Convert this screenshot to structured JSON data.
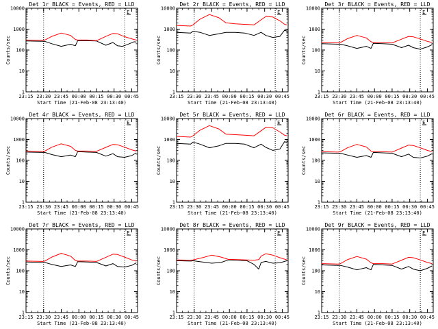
{
  "figure": {
    "colors": {
      "background": "#ffffff",
      "events": "#000000",
      "lld": "#ff0000",
      "axis": "#000000"
    },
    "xlabel": "Start Time (21-Feb-08 23:13:40)",
    "ylabel": "Counts/sec",
    "x_tick_labels": [
      "23:15",
      "23:30",
      "23:45",
      "00:00",
      "00:15",
      "00:30",
      "00:45"
    ],
    "y_tick_labels": [
      "1",
      "10",
      "100",
      "1000",
      "10000"
    ],
    "marker_label": "E"
  },
  "chart_data": [
    {
      "type": "line",
      "title": "Det 1r BLACK = Events, RED = LLD",
      "x_unit": "minutes after 23:15",
      "ylim": [
        1,
        10000
      ],
      "xlim": [
        0,
        95
      ],
      "y_scale": "log",
      "vlines": [
        15,
        84
      ],
      "series": [
        {
          "color": "#000000",
          "x": [
            0,
            14,
            16,
            22,
            30,
            38,
            42,
            44,
            52,
            60,
            68,
            74,
            78,
            82,
            86,
            92,
            94
          ],
          "y": [
            270,
            260,
            260,
            200,
            150,
            190,
            160,
            280,
            280,
            270,
            170,
            230,
            160,
            150,
            180,
            250,
            240
          ]
        },
        {
          "color": "#ff0000",
          "x": [
            0,
            14,
            16,
            22,
            30,
            38,
            42,
            44,
            52,
            60,
            68,
            74,
            78,
            82,
            86,
            92,
            94
          ],
          "y": [
            300,
            290,
            300,
            450,
            650,
            500,
            320,
            300,
            300,
            280,
            450,
            620,
            600,
            480,
            400,
            320,
            300
          ]
        }
      ]
    },
    {
      "type": "line",
      "title": "Det 2r BLACK = Events, RED = LLD",
      "x_unit": "minutes after 23:15",
      "ylim": [
        1,
        10000
      ],
      "xlim": [
        0,
        95
      ],
      "y_scale": "log",
      "vlines": [
        15,
        84
      ],
      "series": [
        {
          "color": "#000000",
          "x": [
            0,
            12,
            14,
            20,
            28,
            36,
            42,
            50,
            58,
            66,
            72,
            76,
            82,
            88,
            92,
            94
          ],
          "y": [
            700,
            650,
            800,
            700,
            500,
            600,
            700,
            700,
            650,
            500,
            700,
            500,
            400,
            450,
            900,
            800
          ]
        },
        {
          "color": "#ff0000",
          "x": [
            0,
            12,
            14,
            20,
            28,
            36,
            42,
            50,
            58,
            66,
            72,
            76,
            82,
            88,
            92,
            94
          ],
          "y": [
            1500,
            1400,
            1600,
            3000,
            5000,
            3500,
            2000,
            1800,
            1700,
            1600,
            2800,
            4000,
            3800,
            2500,
            1700,
            1600
          ]
        }
      ]
    },
    {
      "type": "line",
      "title": "Det 3r BLACK = Events, RED = LLD",
      "x_unit": "minutes after 23:15",
      "ylim": [
        1,
        10000
      ],
      "xlim": [
        0,
        95
      ],
      "y_scale": "log",
      "vlines": [
        15,
        84
      ],
      "series": [
        {
          "color": "#000000",
          "x": [
            0,
            14,
            16,
            22,
            30,
            38,
            42,
            44,
            52,
            60,
            68,
            74,
            78,
            84,
            90,
            94
          ],
          "y": [
            200,
            190,
            190,
            160,
            120,
            150,
            120,
            210,
            200,
            190,
            130,
            170,
            130,
            110,
            140,
            180
          ]
        },
        {
          "color": "#ff0000",
          "x": [
            0,
            14,
            16,
            22,
            30,
            38,
            42,
            44,
            52,
            60,
            68,
            74,
            78,
            84,
            90,
            94
          ],
          "y": [
            230,
            220,
            230,
            350,
            500,
            380,
            250,
            230,
            230,
            220,
            330,
            450,
            430,
            340,
            260,
            230
          ]
        }
      ]
    },
    {
      "type": "line",
      "title": "Det 4r BLACK = Events, RED = LLD",
      "x_unit": "minutes after 23:15",
      "ylim": [
        1,
        10000
      ],
      "xlim": [
        0,
        95
      ],
      "y_scale": "log",
      "vlines": [
        15,
        84
      ],
      "series": [
        {
          "color": "#000000",
          "x": [
            0,
            14,
            16,
            22,
            30,
            38,
            42,
            44,
            52,
            60,
            68,
            74,
            78,
            84,
            90,
            94
          ],
          "y": [
            250,
            240,
            240,
            190,
            150,
            180,
            150,
            260,
            250,
            240,
            160,
            210,
            150,
            140,
            170,
            230
          ]
        },
        {
          "color": "#ff0000",
          "x": [
            0,
            14,
            16,
            22,
            30,
            38,
            42,
            44,
            52,
            60,
            68,
            74,
            78,
            84,
            90,
            94
          ],
          "y": [
            280,
            270,
            280,
            430,
            620,
            470,
            300,
            280,
            280,
            270,
            420,
            580,
            560,
            430,
            320,
            280
          ]
        }
      ]
    },
    {
      "type": "line",
      "title": "Det 5r BLACK = Events, RED = LLD",
      "x_unit": "minutes after 23:15",
      "ylim": [
        1,
        10000
      ],
      "xlim": [
        0,
        95
      ],
      "y_scale": "log",
      "vlines": [
        15,
        84
      ],
      "series": [
        {
          "color": "#000000",
          "x": [
            0,
            12,
            14,
            20,
            28,
            36,
            42,
            50,
            58,
            66,
            72,
            76,
            82,
            88,
            92,
            94
          ],
          "y": [
            650,
            600,
            750,
            600,
            400,
            500,
            650,
            650,
            600,
            400,
            600,
            420,
            300,
            350,
            800,
            700
          ]
        },
        {
          "color": "#ff0000",
          "x": [
            0,
            12,
            14,
            20,
            28,
            36,
            42,
            50,
            58,
            66,
            72,
            76,
            82,
            88,
            92,
            94
          ],
          "y": [
            1400,
            1300,
            1500,
            2800,
            4600,
            3200,
            1800,
            1700,
            1600,
            1500,
            2600,
            3800,
            3600,
            2300,
            1600,
            1500
          ]
        }
      ]
    },
    {
      "type": "line",
      "title": "Det 6r BLACK = Events, RED = LLD",
      "x_unit": "minutes after 23:15",
      "ylim": [
        1,
        10000
      ],
      "xlim": [
        0,
        95
      ],
      "y_scale": "log",
      "vlines": [
        15,
        84
      ],
      "series": [
        {
          "color": "#000000",
          "x": [
            0,
            14,
            16,
            22,
            30,
            38,
            42,
            44,
            52,
            60,
            68,
            74,
            78,
            84,
            90,
            94
          ],
          "y": [
            230,
            220,
            220,
            180,
            140,
            170,
            140,
            240,
            230,
            220,
            150,
            200,
            140,
            130,
            160,
            210
          ]
        },
        {
          "color": "#ff0000",
          "x": [
            0,
            14,
            16,
            22,
            30,
            38,
            42,
            44,
            52,
            60,
            68,
            74,
            78,
            84,
            90,
            94
          ],
          "y": [
            260,
            250,
            260,
            400,
            580,
            440,
            280,
            260,
            260,
            250,
            390,
            540,
            520,
            400,
            300,
            260
          ]
        }
      ]
    },
    {
      "type": "line",
      "title": "Det 7r BLACK = Events, RED = LLD",
      "x_unit": "minutes after 23:15",
      "ylim": [
        1,
        10000
      ],
      "xlim": [
        0,
        95
      ],
      "y_scale": "log",
      "vlines": [
        15,
        84
      ],
      "series": [
        {
          "color": "#000000",
          "x": [
            0,
            14,
            16,
            22,
            30,
            38,
            42,
            44,
            52,
            60,
            68,
            74,
            78,
            84,
            90,
            94
          ],
          "y": [
            260,
            250,
            250,
            200,
            160,
            190,
            160,
            270,
            260,
            250,
            170,
            220,
            160,
            150,
            180,
            240
          ]
        },
        {
          "color": "#ff0000",
          "x": [
            0,
            14,
            16,
            22,
            30,
            38,
            42,
            44,
            52,
            60,
            68,
            74,
            78,
            84,
            90,
            94
          ],
          "y": [
            290,
            280,
            290,
            450,
            680,
            500,
            310,
            290,
            290,
            280,
            440,
            620,
            600,
            450,
            330,
            290
          ]
        }
      ]
    },
    {
      "type": "line",
      "title": "Det 8r BLACK = Events, RED = LLD",
      "x_unit": "minutes after 23:15",
      "ylim": [
        1,
        10000
      ],
      "xlim": [
        0,
        95
      ],
      "y_scale": "log",
      "vlines": [
        15,
        84
      ],
      "series": [
        {
          "color": "#000000",
          "x": [
            0,
            12,
            14,
            22,
            30,
            38,
            44,
            52,
            60,
            66,
            70,
            72,
            76,
            82,
            88,
            94
          ],
          "y": [
            300,
            290,
            300,
            260,
            230,
            250,
            330,
            320,
            300,
            200,
            120,
            250,
            280,
            230,
            240,
            300
          ]
        },
        {
          "color": "#ff0000",
          "x": [
            0,
            12,
            14,
            22,
            30,
            38,
            44,
            52,
            60,
            66,
            70,
            72,
            76,
            82,
            88,
            94
          ],
          "y": [
            330,
            320,
            330,
            420,
            560,
            450,
            350,
            340,
            330,
            320,
            340,
            500,
            650,
            560,
            420,
            330
          ]
        }
      ]
    },
    {
      "type": "line",
      "title": "Det 9r BLACK = Events, RED = LLD",
      "x_unit": "minutes after 23:15",
      "ylim": [
        1,
        10000
      ],
      "xlim": [
        0,
        95
      ],
      "y_scale": "log",
      "vlines": [
        15,
        84
      ],
      "series": [
        {
          "color": "#000000",
          "x": [
            0,
            14,
            16,
            22,
            30,
            38,
            42,
            44,
            52,
            60,
            68,
            74,
            78,
            84,
            90,
            94
          ],
          "y": [
            190,
            180,
            180,
            150,
            110,
            140,
            110,
            200,
            190,
            180,
            120,
            160,
            120,
            100,
            130,
            170
          ]
        },
        {
          "color": "#ff0000",
          "x": [
            0,
            14,
            16,
            22,
            30,
            38,
            42,
            44,
            52,
            60,
            68,
            74,
            78,
            84,
            90,
            94
          ],
          "y": [
            220,
            210,
            220,
            340,
            480,
            360,
            240,
            220,
            220,
            210,
            320,
            440,
            420,
            330,
            250,
            220
          ]
        }
      ]
    }
  ]
}
